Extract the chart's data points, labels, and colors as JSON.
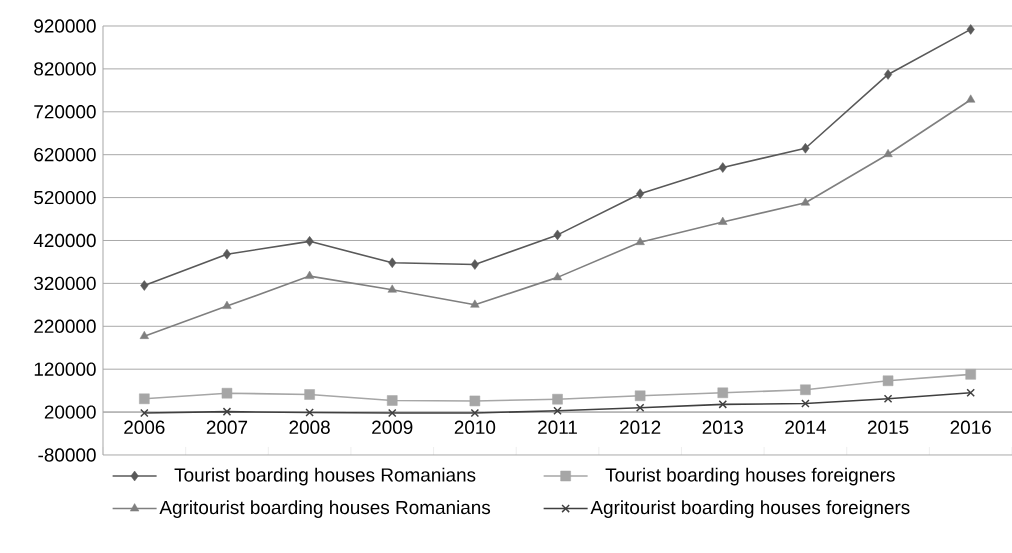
{
  "chart_data": {
    "type": "line",
    "categories": [
      "2006",
      "2007",
      "2008",
      "2009",
      "2010",
      "2011",
      "2012",
      "2013",
      "2014",
      "2015",
      "2016"
    ],
    "series": [
      {
        "name": "Tourist boarding houses Romanians",
        "color": "#595959",
        "marker": "diamond",
        "values": [
          315000,
          388000,
          418000,
          368000,
          364000,
          433000,
          529000,
          590000,
          635000,
          807000,
          912000
        ]
      },
      {
        "name": "Tourist boarding houses foreigners",
        "color": "#a6a6a6",
        "marker": "square",
        "values": [
          51000,
          64000,
          61000,
          47000,
          46000,
          50000,
          58000,
          65000,
          72000,
          93000,
          108000
        ]
      },
      {
        "name": "Agritourist boarding houses Romanians",
        "color": "#7f7f7f",
        "marker": "triangle",
        "values": [
          197000,
          267000,
          337000,
          305000,
          270000,
          334000,
          416000,
          463000,
          508000,
          621000,
          748000
        ]
      },
      {
        "name": "Agritourist boarding houses foreigners",
        "color": "#404040",
        "marker": "cross",
        "values": [
          18000,
          21000,
          19000,
          18000,
          18000,
          23000,
          30000,
          38000,
          40000,
          51000,
          65000
        ]
      }
    ],
    "ylim": [
      -80000,
      920000
    ],
    "yticks": [
      -80000,
      20000,
      120000,
      220000,
      320000,
      420000,
      520000,
      620000,
      720000,
      820000,
      920000
    ],
    "grid": "y",
    "legend": "bottom"
  }
}
